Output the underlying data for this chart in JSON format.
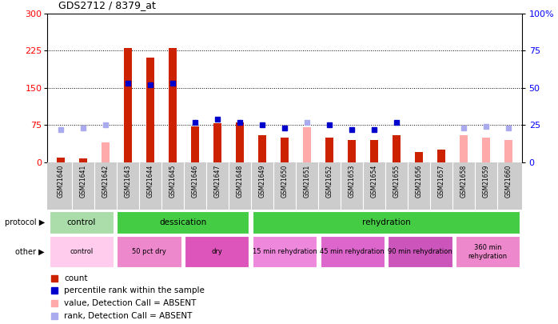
{
  "title": "GDS2712 / 8379_at",
  "samples": [
    "GSM21640",
    "GSM21641",
    "GSM21642",
    "GSM21643",
    "GSM21644",
    "GSM21645",
    "GSM21646",
    "GSM21647",
    "GSM21648",
    "GSM21649",
    "GSM21650",
    "GSM21651",
    "GSM21652",
    "GSM21653",
    "GSM21654",
    "GSM21655",
    "GSM21656",
    "GSM21657",
    "GSM21658",
    "GSM21659",
    "GSM21660"
  ],
  "count_values": [
    10,
    8,
    null,
    230,
    210,
    230,
    72,
    78,
    80,
    55,
    50,
    null,
    50,
    45,
    45,
    55,
    20,
    25,
    null,
    null,
    null
  ],
  "count_absent": [
    null,
    null,
    40,
    null,
    null,
    null,
    null,
    null,
    null,
    null,
    null,
    70,
    null,
    null,
    null,
    null,
    null,
    null,
    55,
    50,
    45
  ],
  "rank_values": [
    null,
    null,
    null,
    53,
    52,
    53,
    27,
    29,
    27,
    25,
    23,
    null,
    25,
    22,
    22,
    27,
    null,
    null,
    null,
    null,
    null
  ],
  "rank_absent": [
    22,
    23,
    25,
    null,
    null,
    null,
    null,
    null,
    null,
    null,
    null,
    27,
    null,
    null,
    null,
    null,
    null,
    null,
    23,
    24,
    23
  ],
  "left_ylim": [
    0,
    300
  ],
  "right_ylim": [
    0,
    100
  ],
  "left_yticks": [
    0,
    75,
    150,
    225,
    300
  ],
  "right_yticks": [
    0,
    25,
    50,
    75,
    100
  ],
  "right_yticklabels": [
    "0",
    "25",
    "50",
    "75",
    "100%"
  ],
  "bar_color": "#cc2200",
  "bar_absent_color": "#ffaaaa",
  "rank_color": "#0000cc",
  "rank_absent_color": "#aaaaee",
  "proto_groups": [
    {
      "label": "control",
      "start": 0,
      "end": 3,
      "color": "#aaddaa"
    },
    {
      "label": "dessication",
      "start": 3,
      "end": 9,
      "color": "#44cc44"
    },
    {
      "label": "rehydration",
      "start": 9,
      "end": 21,
      "color": "#44cc44"
    }
  ],
  "other_groups": [
    {
      "label": "control",
      "start": 0,
      "end": 3,
      "color": "#ffccee"
    },
    {
      "label": "50 pct dry",
      "start": 3,
      "end": 6,
      "color": "#ee88cc"
    },
    {
      "label": "dry",
      "start": 6,
      "end": 9,
      "color": "#dd55bb"
    },
    {
      "label": "15 min rehydration",
      "start": 9,
      "end": 12,
      "color": "#ee88dd"
    },
    {
      "label": "45 min rehydration",
      "start": 12,
      "end": 15,
      "color": "#dd66cc"
    },
    {
      "label": "90 min rehydration",
      "start": 15,
      "end": 18,
      "color": "#cc55bb"
    },
    {
      "label": "360 min\nrehydration",
      "start": 18,
      "end": 21,
      "color": "#ee88cc"
    }
  ],
  "fig_bg": "#ffffff",
  "tick_area_bg": "#cccccc",
  "legend_items": [
    {
      "color": "#cc2200",
      "marker": "s",
      "label": "count"
    },
    {
      "color": "#0000cc",
      "marker": "s",
      "label": "percentile rank within the sample"
    },
    {
      "color": "#ffaaaa",
      "marker": "s",
      "label": "value, Detection Call = ABSENT"
    },
    {
      "color": "#aaaaee",
      "marker": "s",
      "label": "rank, Detection Call = ABSENT"
    }
  ]
}
